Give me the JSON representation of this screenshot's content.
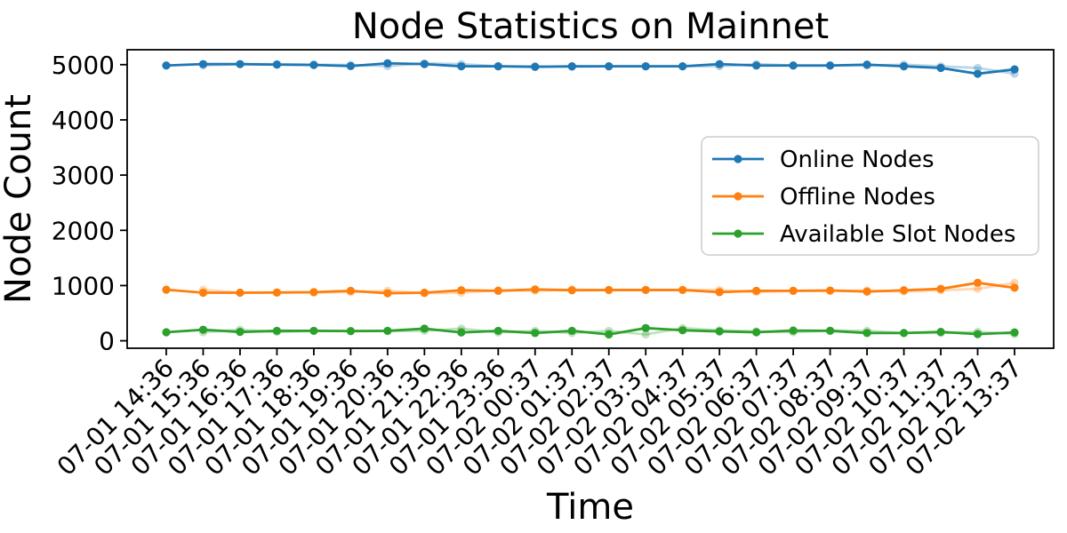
{
  "chart_data": {
    "type": "line",
    "title": "Node Statistics on Mainnet",
    "xlabel": "Time",
    "ylabel": "Node Count",
    "grid": false,
    "legend_position": "center right",
    "ylim": [
      -135,
      5270
    ],
    "yticks": [
      0,
      1000,
      2000,
      3000,
      4000,
      5000
    ],
    "x_tick_labels": [
      "07-01 14:36",
      "07-01 15:36",
      "07-01 16:36",
      "07-01 17:36",
      "07-01 18:36",
      "07-01 19:36",
      "07-01 20:36",
      "07-01 21:36",
      "07-01 22:36",
      "07-01 23:36",
      "07-02 00:37",
      "07-02 01:37",
      "07-02 02:37",
      "07-02 03:37",
      "07-02 04:37",
      "07-02 05:37",
      "07-02 06:37",
      "07-02 07:37",
      "07-02 08:37",
      "07-02 09:37",
      "07-02 10:37",
      "07-02 11:37",
      "07-02 12:37",
      "07-02 13:37"
    ],
    "series": [
      {
        "name": "Online Nodes",
        "color": "#1f77b4",
        "values": [
          4985,
          5010,
          5010,
          5000,
          4995,
          4975,
          5025,
          5010,
          4970,
          4970,
          4960,
          4970,
          4970,
          4970,
          4970,
          5010,
          4985,
          4985,
          4985,
          5000,
          4970,
          4940,
          4835,
          4915
        ]
      },
      {
        "name": "Offline Nodes",
        "color": "#ff7f0e",
        "values": [
          925,
          870,
          870,
          875,
          880,
          905,
          860,
          870,
          915,
          905,
          930,
          915,
          920,
          920,
          920,
          880,
          905,
          905,
          910,
          890,
          915,
          940,
          1050,
          960
        ]
      },
      {
        "name": "Available Slot Nodes",
        "color": "#2ca02c",
        "values": [
          155,
          200,
          160,
          180,
          180,
          175,
          180,
          220,
          150,
          180,
          140,
          180,
          115,
          230,
          190,
          170,
          155,
          185,
          180,
          140,
          140,
          160,
          120,
          150
        ]
      }
    ]
  }
}
